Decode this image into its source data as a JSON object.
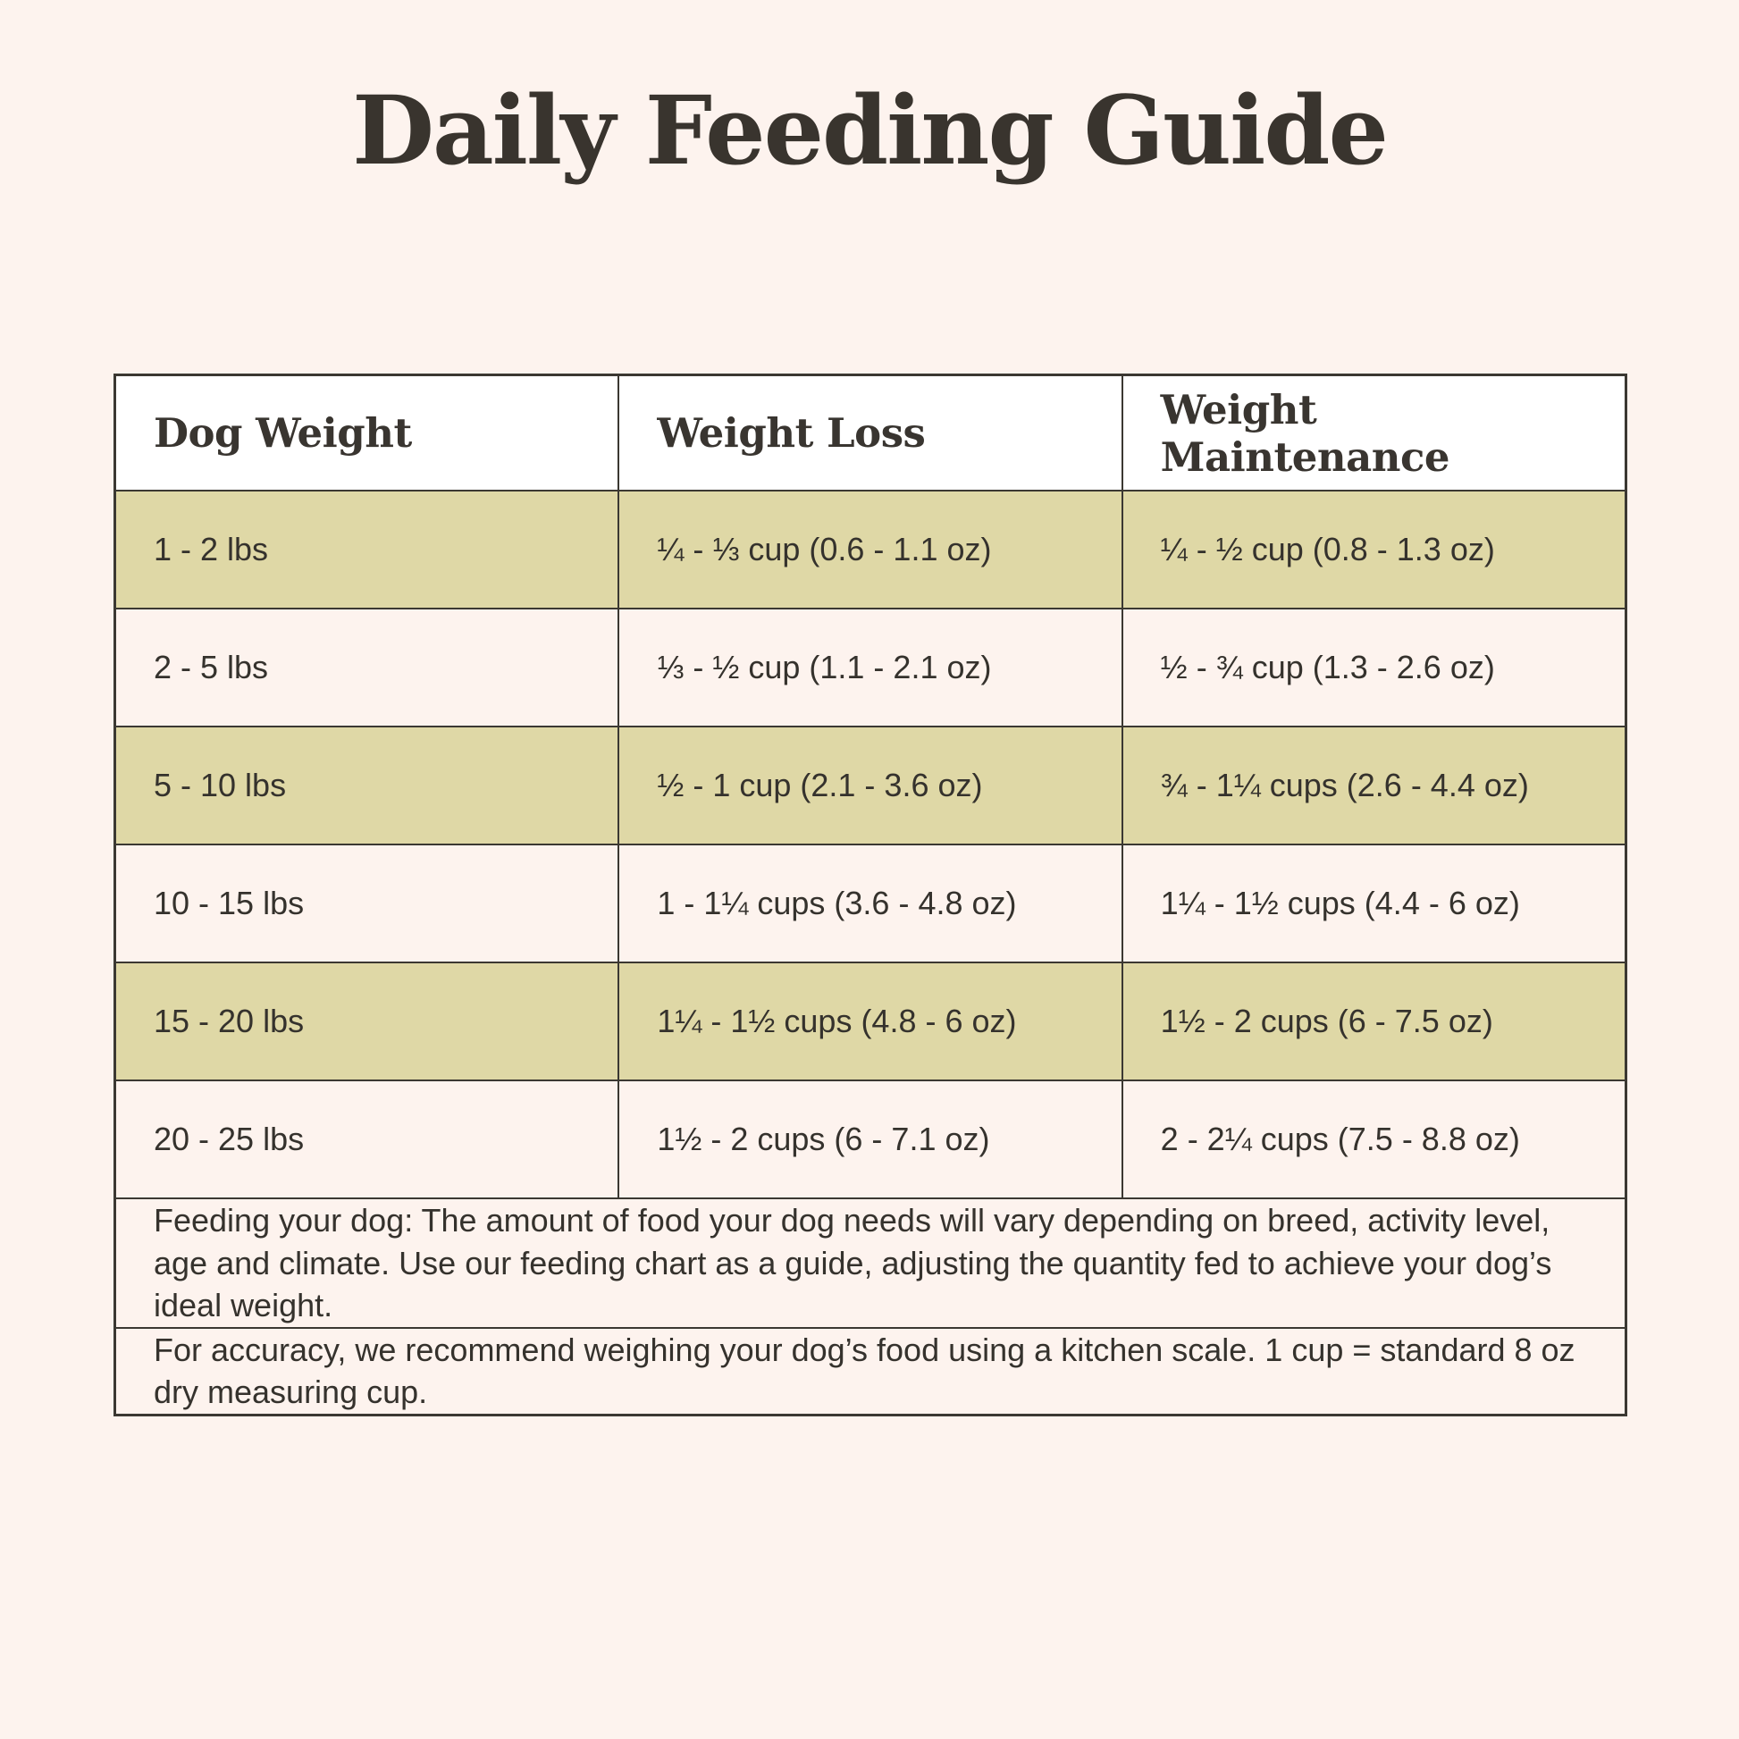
{
  "page": {
    "title": "Daily Feeding Guide"
  },
  "colors": {
    "background": "#FDF3EE",
    "header_background": "#FFFFFF",
    "row_highlight": "#DFD8A6",
    "border": "#3B3832",
    "title_text": "#39342E",
    "body_text": "#35322D"
  },
  "table": {
    "headers": [
      "Dog Weight",
      "Weight Loss",
      "Weight Maintenance"
    ],
    "rows": [
      {
        "dog_weight": "1 - 2 lbs",
        "weight_loss": "¼ - ⅓ cup (0.6 - 1.1 oz)",
        "weight_maintenance": "¼ - ½ cup (0.8 - 1.3 oz)",
        "highlighted": true
      },
      {
        "dog_weight": "2 - 5 lbs",
        "weight_loss": "⅓ - ½ cup (1.1 - 2.1 oz)",
        "weight_maintenance": "½ - ¾ cup (1.3 - 2.6 oz)",
        "highlighted": false
      },
      {
        "dog_weight": "5 - 10 lbs",
        "weight_loss": "½ - 1 cup (2.1 - 3.6 oz)",
        "weight_maintenance": "¾ - 1¼ cups (2.6 - 4.4 oz)",
        "highlighted": true
      },
      {
        "dog_weight": "10 - 15 lbs",
        "weight_loss": "1 - 1¼ cups (3.6 - 4.8 oz)",
        "weight_maintenance": "1¼ - 1½ cups (4.4 - 6 oz)",
        "highlighted": false
      },
      {
        "dog_weight": "15 - 20 lbs",
        "weight_loss": "1¼ - 1½ cups (4.8 - 6 oz)",
        "weight_maintenance": "1½ - 2 cups (6 - 7.5 oz)",
        "highlighted": true
      },
      {
        "dog_weight": "20 - 25 lbs",
        "weight_loss": "1½ - 2 cups (6 - 7.1 oz)",
        "weight_maintenance": "2 - 2¼ cups (7.5 - 8.8 oz)",
        "highlighted": false
      }
    ],
    "notes": [
      "Feeding your dog: The amount of food your dog needs will vary depending on breed, activity level, age and climate. Use our feeding chart as a guide, adjusting the quantity fed to achieve your dog’s ideal weight.",
      "For accuracy, we recommend weighing your dog’s food using a kitchen scale. 1 cup = standard 8 oz dry measuring cup."
    ]
  },
  "chart_data": {
    "type": "table",
    "title": "Daily Feeding Guide",
    "columns": [
      "Dog Weight",
      "Weight Loss",
      "Weight Maintenance"
    ],
    "rows": [
      [
        "1 - 2 lbs",
        "¼ - ⅓ cup (0.6 - 1.1 oz)",
        "¼ - ½ cup (0.8 - 1.3 oz)"
      ],
      [
        "2 - 5 lbs",
        "⅓ - ½ cup (1.1 - 2.1 oz)",
        "½ - ¾ cup (1.3 - 2.6 oz)"
      ],
      [
        "5 - 10 lbs",
        "½ - 1 cup (2.1 - 3.6 oz)",
        "¾ - 1¼ cups (2.6 - 4.4 oz)"
      ],
      [
        "10 - 15 lbs",
        "1 - 1¼ cups (3.6 - 4.8 oz)",
        "1¼ - 1½ cups (4.4 - 6 oz)"
      ],
      [
        "15 - 20 lbs",
        "1¼ - 1½ cups (4.8 - 6 oz)",
        "1½ - 2 cups (6 - 7.5 oz)"
      ],
      [
        "20 - 25 lbs",
        "1½ - 2 cups (6 - 7.1 oz)",
        "2 - 2¼ cups (7.5 - 8.8 oz)"
      ]
    ],
    "footnotes": [
      "Feeding your dog: The amount of food your dog needs will vary depending on breed, activity level, age and climate. Use our feeding chart as a guide, adjusting the quantity fed to achieve your dog’s ideal weight.",
      "For accuracy, we recommend weighing your dog’s food using a kitchen scale. 1 cup = standard 8 oz dry measuring cup."
    ],
    "layout": {
      "highlighted_row_indices": [
        0,
        2,
        4
      ],
      "highlight_color": "#DFD8A6",
      "grid": true
    }
  }
}
